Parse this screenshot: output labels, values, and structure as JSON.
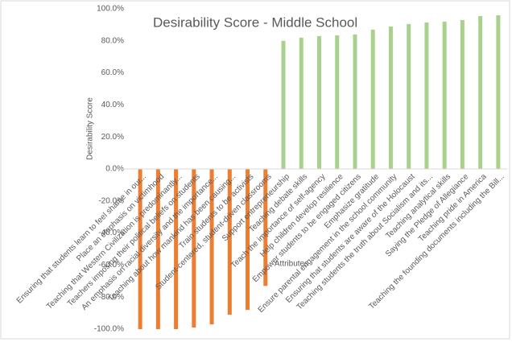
{
  "chart_data": {
    "type": "bar",
    "title": "Desirability Score - Middle School",
    "y_label": "Desirability Score",
    "x_label": "Attributes",
    "categories": [
      "Ensuring that students learn to feel shame in our...",
      "Place an emphasis on victimhood",
      "Teaching that Western Civilization is predominantly...",
      "Teachers imposing their political beliefs on students",
      "An emphasis on racial diversity and the importance...",
      "Teaching about how mankind has been causing...",
      "Train students to be activists",
      "Student-centered, student-driven classrooms",
      "Support entrepreneurship",
      "Teaching debate skills",
      "Teach the importance of self-agency",
      "Help children develop resilience",
      "Empower students to be engaged citizens",
      "Emphasize gratitude",
      "Ensure parental engagement in the school community",
      "Ensuring that students are aware of the Holocaust",
      "Teaching students the truth about Socialism and its...",
      "Teaching analytical skills",
      "Saying the Pledge of Allegiance",
      "Teaching pride in America",
      "Teaching the founding documents including the Bill..."
    ],
    "values": [
      -100,
      -100,
      -100,
      -99,
      -97,
      -91,
      -88,
      -73,
      80,
      82,
      83,
      83.5,
      84,
      87,
      89,
      90.5,
      91.5,
      92,
      93,
      95.5,
      96
    ],
    "colors": [
      "#ed7d31",
      "#ed7d31",
      "#ed7d31",
      "#ed7d31",
      "#ed7d31",
      "#ed7d31",
      "#ed7d31",
      "#ed7d31",
      "#a9d18e",
      "#a9d18e",
      "#a9d18e",
      "#a9d18e",
      "#a9d18e",
      "#a9d18e",
      "#a9d18e",
      "#a9d18e",
      "#a9d18e",
      "#a9d18e",
      "#a9d18e",
      "#a9d18e",
      "#a9d18e"
    ],
    "ylim": [
      -100,
      100
    ],
    "yticks": [
      {
        "value": -100,
        "label": "-100.0%"
      },
      {
        "value": -80,
        "label": "-80.0%"
      },
      {
        "value": -60,
        "label": "-60.0%"
      },
      {
        "value": -40,
        "label": "-40.0%"
      },
      {
        "value": -20,
        "label": "-20.0%"
      },
      {
        "value": 0,
        "label": "0.0%"
      },
      {
        "value": 20,
        "label": "20.0%"
      },
      {
        "value": 40,
        "label": "40.0%"
      },
      {
        "value": 60,
        "label": "60.0%"
      },
      {
        "value": 80,
        "label": "80.0%"
      },
      {
        "value": 100,
        "label": "100.0%"
      }
    ],
    "grid": false
  }
}
